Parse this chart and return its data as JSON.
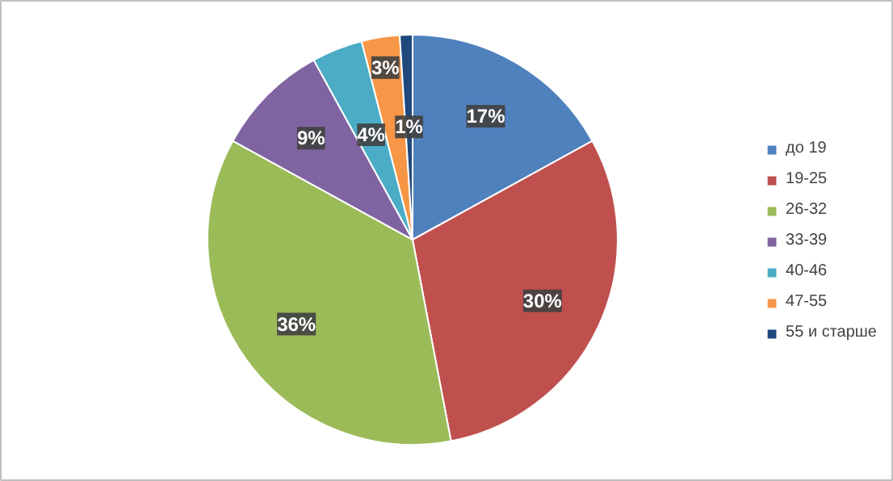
{
  "chart_data": {
    "type": "pie",
    "categories": [
      "до 19",
      "19-25",
      "26-32",
      "33-39",
      "40-46",
      "47-55",
      "55 и старше"
    ],
    "values": [
      17,
      30,
      36,
      9,
      4,
      3,
      1
    ],
    "colors": [
      "#4f81bd",
      "#c0504d",
      "#9bbb59",
      "#8064a2",
      "#4bacc6",
      "#f79646",
      "#1f497d"
    ],
    "value_labels": [
      "17%",
      "30%",
      "36%",
      "9%",
      "4%",
      "3%",
      "1%"
    ],
    "legend": "right"
  }
}
